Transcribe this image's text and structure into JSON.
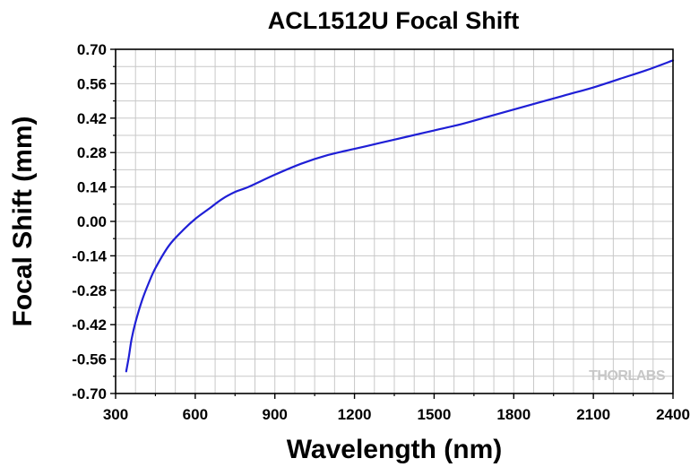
{
  "colors": {
    "series": "#1f1fd6",
    "grid": "#c8c8c8",
    "axis": "#000000",
    "watermark": "#c7c7c7"
  },
  "chart_data": {
    "type": "line",
    "title": "ACL1512U Focal Shift",
    "xlabel": "Wavelength (nm)",
    "ylabel": "Focal Shift (mm)",
    "xlim": [
      300,
      2400
    ],
    "ylim": [
      -0.7,
      0.7
    ],
    "xticks": [
      "300",
      "600",
      "900",
      "1200",
      "1500",
      "1800",
      "2100",
      "2400"
    ],
    "yticks": [
      "0.70",
      "0.56",
      "0.42",
      "0.28",
      "0.14",
      "0.00",
      "-0.14",
      "-0.28",
      "-0.42",
      "-0.56",
      "-0.70"
    ],
    "grid": true,
    "watermark": "THORLABS",
    "series": [
      {
        "x": [
          340,
          350,
          360,
          375,
          400,
          425,
          450,
          500,
          550,
          600,
          650,
          700,
          750,
          800,
          900,
          1000,
          1100,
          1200,
          1300,
          1400,
          1500,
          1600,
          1700,
          1800,
          1900,
          2000,
          2100,
          2200,
          2300,
          2400
        ],
        "y": [
          -0.61,
          -0.55,
          -0.48,
          -0.41,
          -0.32,
          -0.25,
          -0.19,
          -0.1,
          -0.04,
          0.01,
          0.05,
          0.09,
          0.12,
          0.14,
          0.19,
          0.235,
          0.27,
          0.295,
          0.32,
          0.345,
          0.37,
          0.395,
          0.425,
          0.455,
          0.485,
          0.515,
          0.545,
          0.58,
          0.615,
          0.655
        ]
      }
    ]
  }
}
